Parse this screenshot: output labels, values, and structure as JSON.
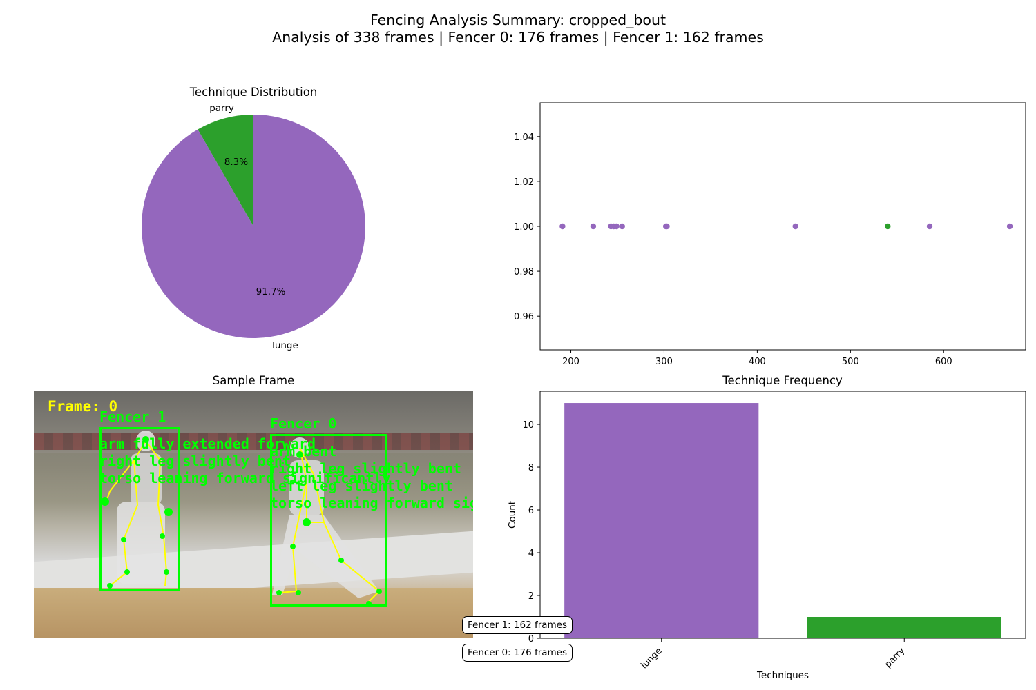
{
  "header": {
    "title": "Fencing Analysis Summary: cropped_bout",
    "subtitle": "Analysis of 338 frames | Fencer 0: 176 frames | Fencer 1: 162 frames"
  },
  "colors": {
    "lunge": "#9467bd",
    "parry": "#2ca02c"
  },
  "chart_data": [
    {
      "type": "pie",
      "title": "Technique Distribution",
      "labels": [
        "parry",
        "lunge"
      ],
      "values": [
        8.3,
        91.7
      ],
      "pct_labels": [
        "8.3%",
        "91.7%"
      ],
      "colors": [
        "#2ca02c",
        "#9467bd"
      ]
    },
    {
      "type": "scatter",
      "title": "",
      "xlabel": "",
      "ylabel": "",
      "xlim": [
        167,
        688
      ],
      "ylim": [
        0.945,
        1.055
      ],
      "xticks": [
        200,
        300,
        400,
        500,
        600
      ],
      "yticks": [
        0.96,
        0.98,
        1.0,
        1.02,
        1.04
      ],
      "ytick_labels": [
        "0.96",
        "0.98",
        "1.00",
        "1.02",
        "1.04"
      ],
      "grid": false,
      "points": [
        {
          "x": 191,
          "y": 1.0,
          "technique": "lunge"
        },
        {
          "x": 224,
          "y": 1.0,
          "technique": "lunge"
        },
        {
          "x": 243,
          "y": 1.0,
          "technique": "lunge"
        },
        {
          "x": 246,
          "y": 1.0,
          "technique": "lunge"
        },
        {
          "x": 249,
          "y": 1.0,
          "technique": "lunge"
        },
        {
          "x": 255,
          "y": 1.0,
          "technique": "lunge"
        },
        {
          "x": 302,
          "y": 1.0,
          "technique": "lunge"
        },
        {
          "x": 303,
          "y": 1.0,
          "technique": "lunge"
        },
        {
          "x": 441,
          "y": 1.0,
          "technique": "lunge"
        },
        {
          "x": 540,
          "y": 1.0,
          "technique": "parry"
        },
        {
          "x": 585,
          "y": 1.0,
          "technique": "lunge"
        },
        {
          "x": 671,
          "y": 1.0,
          "technique": "lunge"
        }
      ]
    },
    {
      "type": "bar",
      "title": "Technique Frequency",
      "xlabel": "Techniques",
      "ylabel": "Count",
      "categories": [
        "lunge",
        "parry"
      ],
      "values": [
        11,
        1
      ],
      "colors": [
        "#9467bd",
        "#2ca02c"
      ],
      "ylim": [
        0,
        11.55
      ],
      "yticks": [
        0,
        2,
        4,
        6,
        8,
        10
      ]
    }
  ],
  "sample_frame": {
    "title": "Sample Frame",
    "frame_label": "Frame: 0",
    "fencer1_label": "Fencer 1",
    "fencer1_notes": [
      "arm fully extended forward",
      "right leg slightly bent",
      "torso leaning forward significantly"
    ],
    "fencer0_label": "Fencer 0",
    "fencer0_notes": [
      "arm bent",
      "right leg slightly bent",
      "left leg slightly bent",
      "torso leaning forward significantly"
    ]
  },
  "badges": {
    "fencer1": "Fencer 1: 162 frames",
    "fencer0": "Fencer 0: 176 frames"
  }
}
